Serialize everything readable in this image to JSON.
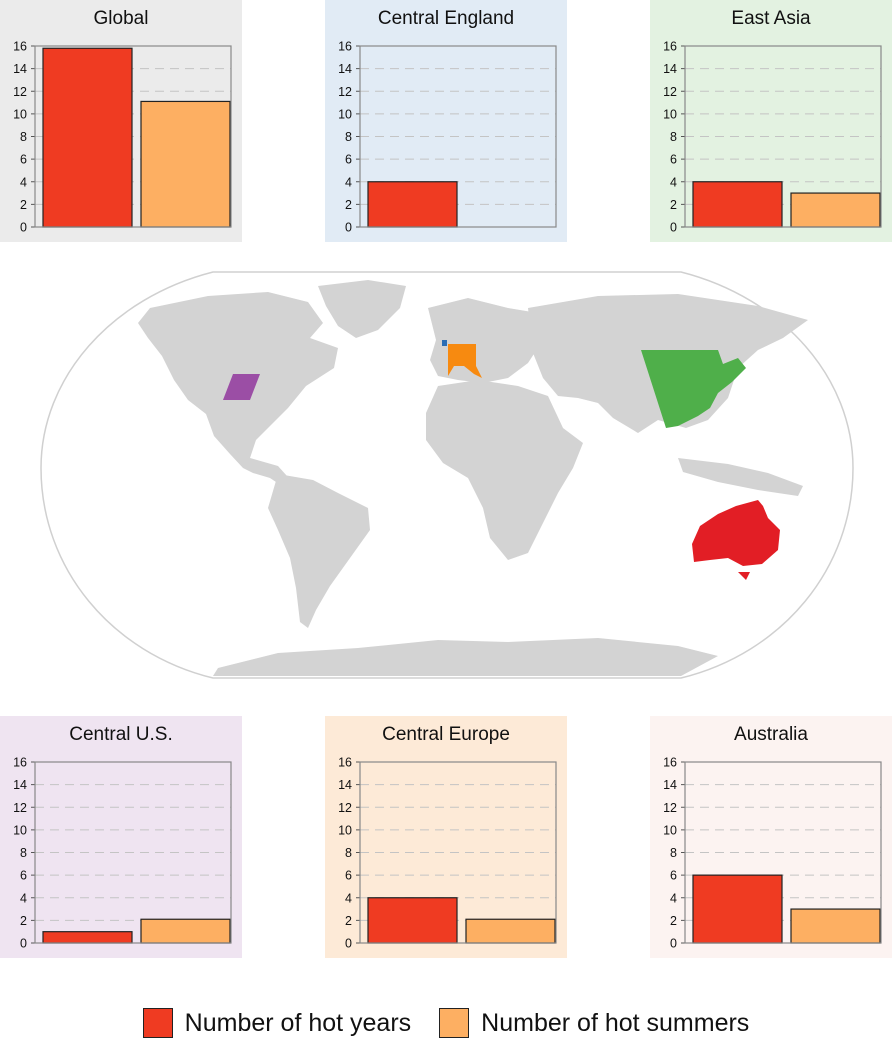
{
  "colors": {
    "hot_years": "#EF3B22",
    "hot_summers": "#FDAF62",
    "land": "#D3D3D3",
    "map_outline": "#D0D0D0",
    "region_central_us": "#9B4EA5",
    "region_central_england": "#2A6DB5",
    "region_central_europe": "#F78A10",
    "region_east_asia": "#4FAF4A",
    "region_australia": "#E21E25"
  },
  "legend": {
    "hot_years_label": "Number of hot years",
    "hot_summers_label": "Number of hot summers"
  },
  "chart_data": [
    {
      "type": "bar",
      "title": "Global",
      "background": "#EBEBEB",
      "categories": [
        "Number of hot years",
        "Number of hot summers"
      ],
      "values": [
        15.8,
        11.1
      ],
      "ylim": [
        0,
        16
      ],
      "yticks": [
        "0",
        "2",
        "4",
        "6",
        "8",
        "10",
        "12",
        "14",
        "16"
      ],
      "grid": true,
      "xlabel": "",
      "ylabel": ""
    },
    {
      "type": "bar",
      "title": "Central England",
      "background": "#E1EBF5",
      "categories": [
        "Number of hot years",
        "Number of hot summers"
      ],
      "values": [
        4,
        0
      ],
      "ylim": [
        0,
        16
      ],
      "yticks": [
        "0",
        "2",
        "4",
        "6",
        "8",
        "10",
        "12",
        "14",
        "16"
      ],
      "grid": true,
      "xlabel": "",
      "ylabel": ""
    },
    {
      "type": "bar",
      "title": "East Asia",
      "background": "#E3F2E1",
      "categories": [
        "Number of hot years",
        "Number of hot summers"
      ],
      "values": [
        4,
        3
      ],
      "ylim": [
        0,
        16
      ],
      "yticks": [
        "0",
        "2",
        "4",
        "6",
        "8",
        "10",
        "12",
        "14",
        "16"
      ],
      "grid": true,
      "xlabel": "",
      "ylabel": ""
    },
    {
      "type": "bar",
      "title": "Central U.S.",
      "background": "#EFE4F1",
      "categories": [
        "Number of hot years",
        "Number of hot summers"
      ],
      "values": [
        1,
        2.1
      ],
      "ylim": [
        0,
        16
      ],
      "yticks": [
        "0",
        "2",
        "4",
        "6",
        "8",
        "10",
        "12",
        "14",
        "16"
      ],
      "grid": true,
      "xlabel": "",
      "ylabel": ""
    },
    {
      "type": "bar",
      "title": "Central Europe",
      "background": "#FDEAD7",
      "categories": [
        "Number of hot years",
        "Number of hot summers"
      ],
      "values": [
        4,
        2.1
      ],
      "ylim": [
        0,
        16
      ],
      "yticks": [
        "0",
        "2",
        "4",
        "6",
        "8",
        "10",
        "12",
        "14",
        "16"
      ],
      "grid": true,
      "xlabel": "",
      "ylabel": ""
    },
    {
      "type": "bar",
      "title": "Australia",
      "background": "#FCF3F1",
      "categories": [
        "Number of hot years",
        "Number of hot summers"
      ],
      "values": [
        6,
        3
      ],
      "ylim": [
        0,
        16
      ],
      "yticks": [
        "0",
        "2",
        "4",
        "6",
        "8",
        "10",
        "12",
        "14",
        "16"
      ],
      "grid": true,
      "xlabel": "",
      "ylabel": ""
    }
  ]
}
